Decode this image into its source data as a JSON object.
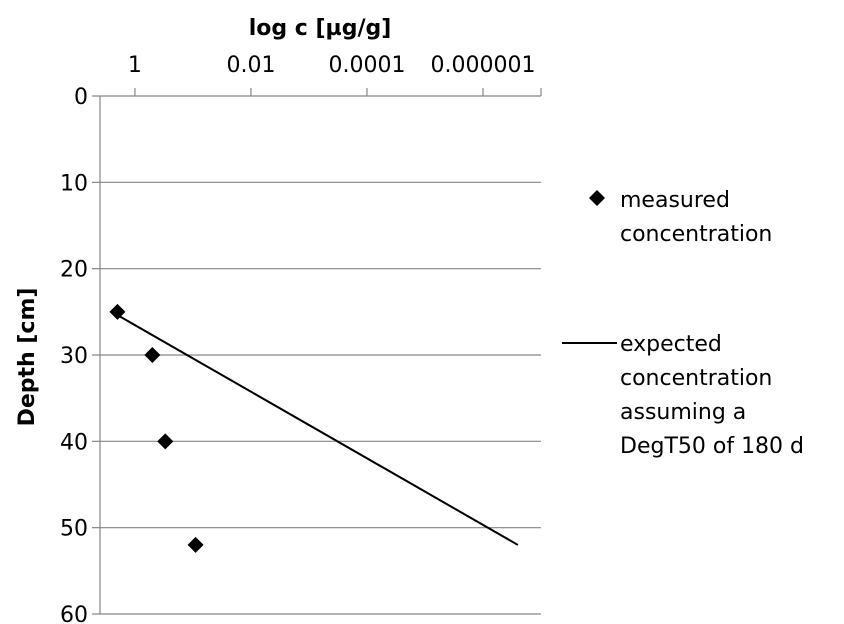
{
  "chart_data": {
    "type": "scatter",
    "title": "",
    "x_axis": {
      "label": "log c [µg/g]",
      "scale": "log",
      "reversed": true,
      "position": "top",
      "lim": [
        4,
        1e-07
      ],
      "ticks": [
        1,
        0.01,
        0.0001,
        1e-06
      ],
      "tick_labels": [
        "1",
        "0.01",
        "0.0001",
        "0.000001"
      ]
    },
    "y_axis": {
      "label": "Depth [cm]",
      "reversed": true,
      "lim": [
        0,
        60
      ],
      "ticks": [
        0,
        10,
        20,
        30,
        40,
        50,
        60
      ],
      "tick_labels": [
        "0",
        "10",
        "20",
        "30",
        "40",
        "50",
        "60"
      ]
    },
    "grid": "horizontal",
    "legend_position": "right",
    "series": [
      {
        "name": "measured concentration",
        "type": "scatter",
        "marker": "diamond",
        "color": "#000000",
        "x": [
          2.0,
          0.5,
          0.3,
          0.09
        ],
        "y": [
          25,
          30,
          40,
          52
        ]
      },
      {
        "name": "expected concentration assuming a DegT50 of 180 d",
        "type": "line",
        "color": "#000000",
        "x": [
          2.5,
          2.5e-07
        ],
        "y": [
          25,
          52
        ]
      }
    ],
    "legend": {
      "measured_lines": [
        "measured",
        "concentration"
      ],
      "expected_lines": [
        "expected",
        "concentration",
        "assuming a",
        "DegT50 of 180 d"
      ]
    }
  }
}
